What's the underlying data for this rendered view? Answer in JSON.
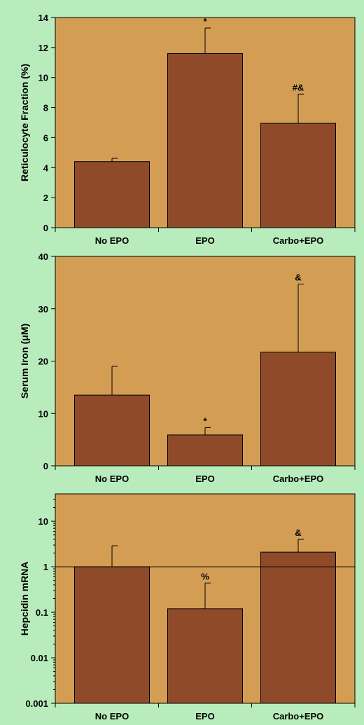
{
  "chart_data": [
    {
      "type": "bar",
      "categories": [
        "No EPO",
        "EPO",
        "Carbo+EPO"
      ],
      "values": [
        4.4,
        11.6,
        6.95
      ],
      "errors": [
        0.22,
        1.7,
        1.95
      ],
      "annotations": [
        "",
        "*",
        "#&"
      ],
      "ylabel": "Reticulocyte Fraction (%)",
      "ylim": [
        0,
        14
      ],
      "yticks": [
        0,
        2,
        4,
        6,
        8,
        10,
        12,
        14
      ],
      "ytick_labels": [
        "0",
        "2",
        "4",
        "6",
        "8",
        "10",
        "12",
        "14"
      ],
      "yscale": "linear",
      "grid": false,
      "reference_line": null
    },
    {
      "type": "bar",
      "categories": [
        "No EPO",
        "EPO",
        "Carbo+EPO"
      ],
      "values": [
        13.5,
        5.9,
        21.7
      ],
      "errors": [
        5.5,
        1.4,
        13.0
      ],
      "annotations": [
        "",
        "*",
        "&"
      ],
      "ylabel": "Serum Iron (μM)",
      "ylim": [
        0,
        40
      ],
      "yticks": [
        0,
        10,
        20,
        30,
        40
      ],
      "ytick_labels": [
        "0",
        "10",
        "20",
        "30",
        "40"
      ],
      "yscale": "linear",
      "grid": false,
      "reference_line": null
    },
    {
      "type": "bar",
      "categories": [
        "No EPO",
        "EPO",
        "Carbo+EPO"
      ],
      "values": [
        1.0,
        0.12,
        2.1
      ],
      "errors": [
        1.9,
        0.32,
        1.9
      ],
      "annotations": [
        "",
        "%",
        "&"
      ],
      "ylabel": "Hepcidin mRNA",
      "ylim": [
        0.001,
        40
      ],
      "yticks": [
        0.001,
        0.01,
        0.1,
        1,
        10
      ],
      "ytick_labels": [
        "0.001",
        "0.01",
        "0.1",
        "1",
        "10"
      ],
      "yscale": "log",
      "grid": false,
      "reference_line": 1
    }
  ],
  "colors": {
    "page_background": "#b8ecbc",
    "plot_background": "#d39e54",
    "bar_fill": "#8f4b29",
    "ink": "#000000"
  }
}
